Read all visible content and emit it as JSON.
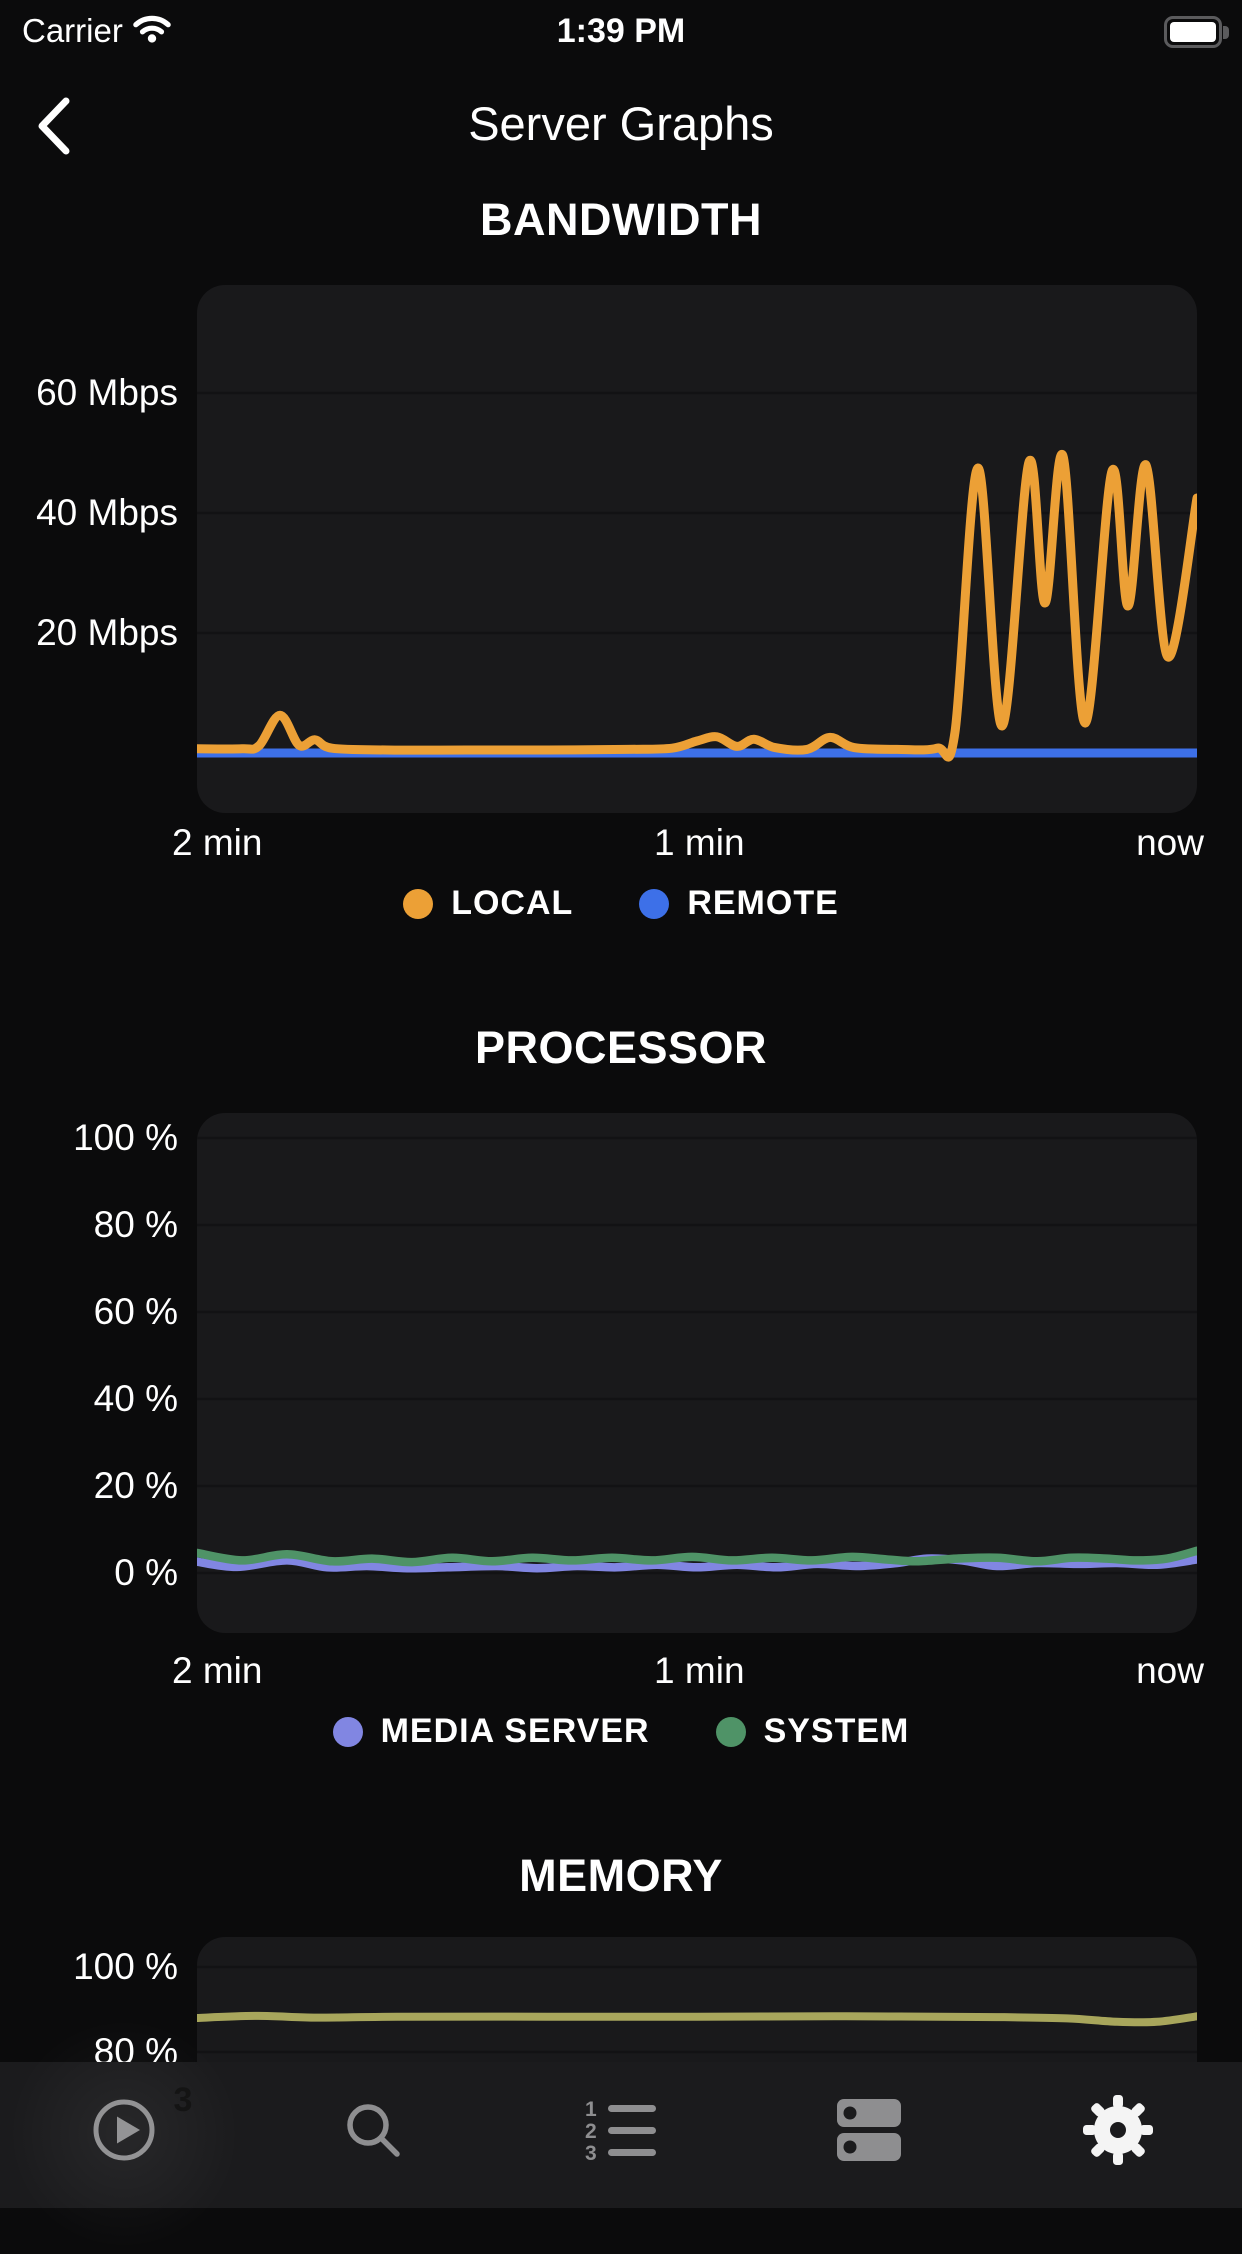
{
  "status_bar": {
    "carrier": "Carrier",
    "time": "1:39 PM",
    "battery_state": "full"
  },
  "nav": {
    "title": "Server Graphs"
  },
  "colors": {
    "page_bg": "#0b0b0c",
    "chart_bg": "#19191b",
    "gridline": "#121214",
    "tab_bar_bg": "#1b1b1d",
    "tab_icon_gray": "#8e8e90",
    "tab_icon_active": "#f4f4f4",
    "badge_amber": "#e5a00d"
  },
  "tab_bar": {
    "items": [
      {
        "id": "activity",
        "icon": "play-circle-icon",
        "badge": "3",
        "active": false
      },
      {
        "id": "search",
        "icon": "search-icon",
        "active": false
      },
      {
        "id": "playlists",
        "icon": "numbered-list-icon",
        "active": false
      },
      {
        "id": "servers",
        "icon": "server-rack-icon",
        "active": false
      },
      {
        "id": "settings",
        "icon": "gear-icon",
        "active": true
      }
    ]
  },
  "chart_data": [
    {
      "type": "line",
      "title": "BANDWIDTH",
      "x_ticks": [
        "2 min",
        "1 min",
        "now"
      ],
      "ytick_labels": [
        "60 Mbps",
        "40 Mbps",
        "20 Mbps"
      ],
      "ytick_values": [
        60,
        40,
        20
      ],
      "ylabel": "Mbps",
      "ylim": [
        0,
        78
      ],
      "x_range": [
        "-2 min",
        "now"
      ],
      "grid": true,
      "legend_position": "bottom",
      "series": [
        {
          "name": "LOCAL",
          "color": "#ECA036",
          "points": [
            [
              0,
              0.7
            ],
            [
              0.045,
              0.7
            ],
            [
              0.062,
              1.2
            ],
            [
              0.083,
              6.3
            ],
            [
              0.102,
              1.3
            ],
            [
              0.118,
              2.2
            ],
            [
              0.135,
              0.8
            ],
            [
              0.19,
              0.5
            ],
            [
              0.27,
              0.5
            ],
            [
              0.35,
              0.5
            ],
            [
              0.43,
              0.6
            ],
            [
              0.475,
              0.8
            ],
            [
              0.5,
              2.0
            ],
            [
              0.52,
              2.7
            ],
            [
              0.54,
              1.1
            ],
            [
              0.557,
              2.3
            ],
            [
              0.578,
              0.9
            ],
            [
              0.61,
              0.6
            ],
            [
              0.633,
              2.6
            ],
            [
              0.657,
              0.9
            ],
            [
              0.7,
              0.6
            ],
            [
              0.74,
              0.8
            ],
            [
              0.758,
              3.5
            ],
            [
              0.781,
              47.5
            ],
            [
              0.805,
              4.5
            ],
            [
              0.832,
              48.5
            ],
            [
              0.848,
              25
            ],
            [
              0.866,
              49.5
            ],
            [
              0.888,
              5
            ],
            [
              0.915,
              47
            ],
            [
              0.931,
              24.5
            ],
            [
              0.949,
              48
            ],
            [
              0.971,
              16
            ],
            [
              1,
              42.5
            ]
          ]
        },
        {
          "name": "REMOTE",
          "color": "#3D70E8",
          "points": [
            [
              0,
              0
            ],
            [
              0.5,
              0
            ],
            [
              1,
              0
            ]
          ]
        }
      ]
    },
    {
      "type": "line",
      "title": "PROCESSOR",
      "x_ticks": [
        "2 min",
        "1 min",
        "now"
      ],
      "ytick_labels": [
        "100 %",
        "80 %",
        "60 %",
        "40 %",
        "20 %",
        "0 %"
      ],
      "ytick_values": [
        100,
        80,
        60,
        40,
        20,
        0
      ],
      "ylabel": "%",
      "ylim": [
        0,
        105
      ],
      "x_range": [
        "-2 min",
        "now"
      ],
      "grid": true,
      "legend_position": "bottom",
      "series": [
        {
          "name": "MEDIA SERVER",
          "color": "#8186E2",
          "points": [
            [
              0,
              2.6
            ],
            [
              0.04,
              1.4
            ],
            [
              0.09,
              2.9
            ],
            [
              0.13,
              1.3
            ],
            [
              0.17,
              1.6
            ],
            [
              0.21,
              1.1
            ],
            [
              0.25,
              1.3
            ],
            [
              0.3,
              1.6
            ],
            [
              0.34,
              1.1
            ],
            [
              0.38,
              1.6
            ],
            [
              0.42,
              1.3
            ],
            [
              0.46,
              1.9
            ],
            [
              0.5,
              1.3
            ],
            [
              0.54,
              1.9
            ],
            [
              0.58,
              1.3
            ],
            [
              0.62,
              2.1
            ],
            [
              0.66,
              1.6
            ],
            [
              0.7,
              2.3
            ],
            [
              0.73,
              3.3
            ],
            [
              0.765,
              2.9
            ],
            [
              0.8,
              1.6
            ],
            [
              0.84,
              2.3
            ],
            [
              0.88,
              2.1
            ],
            [
              0.92,
              2.3
            ],
            [
              0.96,
              1.9
            ],
            [
              1,
              3.1
            ]
          ]
        },
        {
          "name": "SYSTEM",
          "color": "#4F9367",
          "points": [
            [
              0,
              4.6
            ],
            [
              0.045,
              2.9
            ],
            [
              0.09,
              4.3
            ],
            [
              0.135,
              2.7
            ],
            [
              0.175,
              3.3
            ],
            [
              0.215,
              2.5
            ],
            [
              0.255,
              3.5
            ],
            [
              0.295,
              2.7
            ],
            [
              0.335,
              3.5
            ],
            [
              0.375,
              2.9
            ],
            [
              0.415,
              3.5
            ],
            [
              0.455,
              2.9
            ],
            [
              0.495,
              3.7
            ],
            [
              0.535,
              2.9
            ],
            [
              0.575,
              3.5
            ],
            [
              0.615,
              2.9
            ],
            [
              0.655,
              3.7
            ],
            [
              0.69,
              3.1
            ],
            [
              0.72,
              2.7
            ],
            [
              0.76,
              3.3
            ],
            [
              0.8,
              3.5
            ],
            [
              0.84,
              2.7
            ],
            [
              0.875,
              3.5
            ],
            [
              0.91,
              3.3
            ],
            [
              0.94,
              2.9
            ],
            [
              0.97,
              3.3
            ],
            [
              1,
              5.1
            ]
          ]
        }
      ]
    },
    {
      "type": "line",
      "title": "MEMORY",
      "ytick_labels": [
        "100 %",
        "80 %"
      ],
      "ytick_values": [
        100,
        80
      ],
      "ylabel": "%",
      "ylim": [
        80,
        105
      ],
      "grid": true,
      "series": [
        {
          "color": "#A8A65C",
          "points": [
            [
              0,
              88
            ],
            [
              0.06,
              88.5
            ],
            [
              0.12,
              88.1
            ],
            [
              0.2,
              88.3
            ],
            [
              0.35,
              88.3
            ],
            [
              0.5,
              88.3
            ],
            [
              0.65,
              88.4
            ],
            [
              0.8,
              88.2
            ],
            [
              0.87,
              87.9
            ],
            [
              0.92,
              87.1
            ],
            [
              0.96,
              87.1
            ],
            [
              1,
              88.4
            ]
          ]
        }
      ]
    }
  ]
}
